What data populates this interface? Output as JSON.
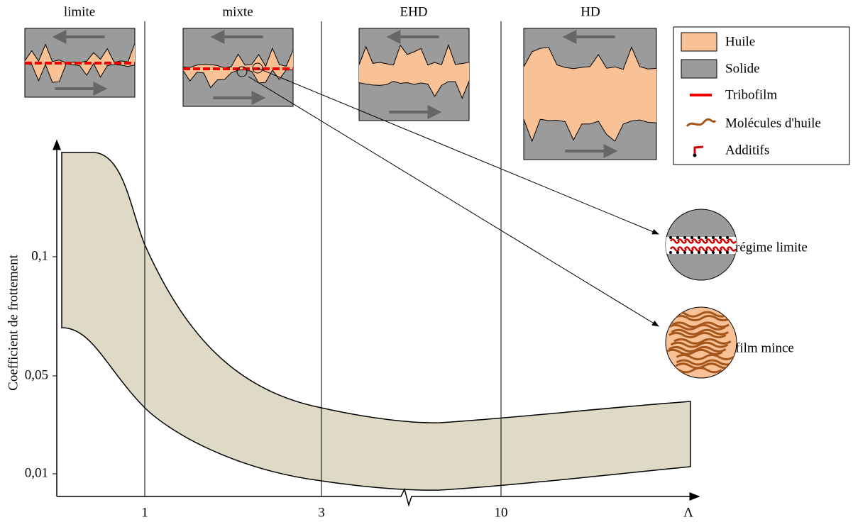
{
  "regimes": [
    "limite",
    "mixte",
    "EHD",
    "HD"
  ],
  "legend": [
    "Huile",
    "Solide",
    "Tribofilm",
    "Molécules d'huile",
    "Additifs"
  ],
  "axes": {
    "y_label": "Coefficient de frottement",
    "y_ticks": [
      "0,1",
      "0,05",
      "0,01"
    ],
    "x_ticks": [
      "1",
      "3",
      "10"
    ],
    "x_label": "Λ"
  },
  "zooms": [
    "régime limite",
    "film mince"
  ]
}
